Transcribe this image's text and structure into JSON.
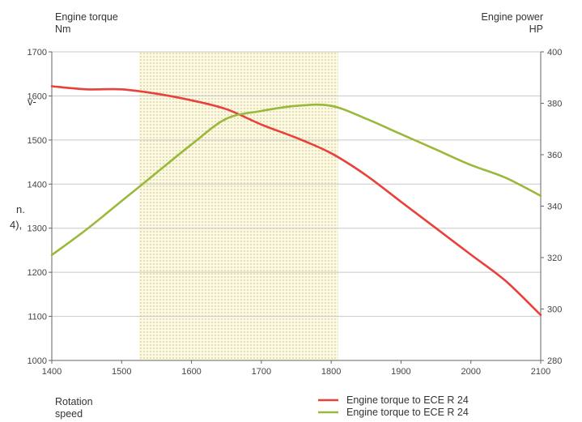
{
  "chart_data": {
    "type": "line",
    "title": "",
    "x": {
      "label_lines": [
        "Rotation",
        "speed"
      ],
      "range": [
        1400,
        2100
      ],
      "ticks": [
        1400,
        1500,
        1600,
        1700,
        1800,
        1900,
        2000,
        2100
      ]
    },
    "y_left": {
      "label_lines": [
        "Engine torque",
        "Nm"
      ],
      "range": [
        1000,
        1700
      ],
      "ticks": [
        1000,
        1100,
        1200,
        1300,
        1400,
        1500,
        1600,
        1700
      ]
    },
    "y_right": {
      "label_lines": [
        "Engine power",
        "HP"
      ],
      "range": [
        280,
        400
      ],
      "ticks": [
        280,
        300,
        320,
        340,
        360,
        380,
        400
      ]
    },
    "grid": true,
    "highlight_band": {
      "from": 1525,
      "to": 1810
    },
    "series": [
      {
        "name": "Engine torque to ECE R 24",
        "color": "#e8413a",
        "axis": "left",
        "x": [
          1400,
          1450,
          1500,
          1550,
          1600,
          1650,
          1700,
          1750,
          1800,
          1850,
          1900,
          1950,
          2000,
          2050,
          2100
        ],
        "values": [
          1622,
          1615,
          1615,
          1605,
          1590,
          1570,
          1535,
          1505,
          1470,
          1420,
          1360,
          1300,
          1240,
          1180,
          1103
        ]
      },
      {
        "name": "Engine torque to ECE R 24",
        "color": "#9ab839",
        "axis": "right",
        "x": [
          1400,
          1450,
          1500,
          1550,
          1600,
          1650,
          1700,
          1750,
          1800,
          1850,
          1900,
          1950,
          2000,
          2050,
          2100
        ],
        "values": [
          321,
          331,
          342,
          353,
          364,
          374,
          377,
          379,
          379,
          374,
          368,
          362,
          356,
          351,
          344
        ]
      }
    ],
    "legend_position": "bottom-right",
    "side_text": [
      "v-",
      "n.",
      "4),"
    ]
  }
}
